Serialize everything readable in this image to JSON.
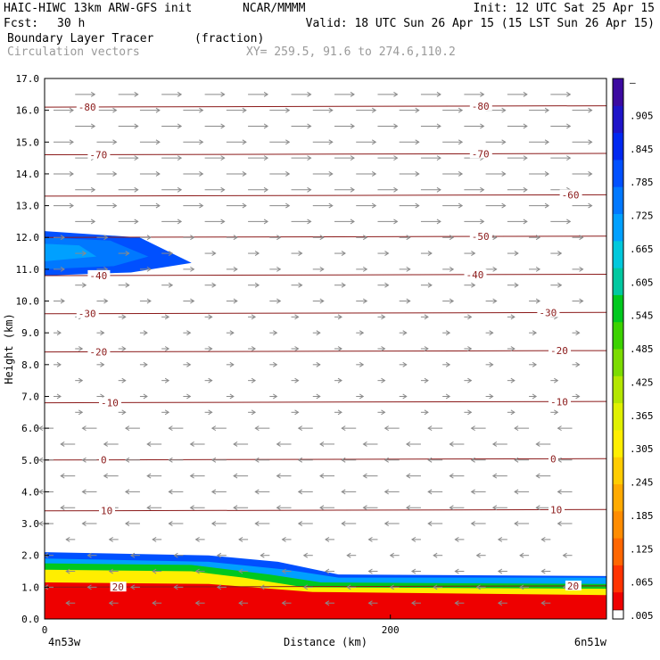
{
  "header": {
    "model": "HAIC-HIWC 13km ARW-GFS init",
    "org": "NCAR/MMMM",
    "init": "Init: 12 UTC Sat 25 Apr 15",
    "fcst_label": "Fcst:",
    "fcst_value": "30 h",
    "valid": "Valid: 18 UTC Sun 26 Apr 15 (15 LST Sun 26 Apr 15)",
    "field": "Boundary Layer Tracer",
    "field_units": "(fraction)",
    "vectors": "Circulation vectors",
    "xy": "XY= 259.5, 91.6 to 274.6,110.2"
  },
  "colors": {
    "isotherm": "#8b1a1a",
    "vector": "#8a8a8a",
    "scale": [
      "#ffffff",
      "#ee0000",
      "#ff3300",
      "#ff6600",
      "#ff8c00",
      "#ffaa00",
      "#ffcc00",
      "#ffee00",
      "#e0f000",
      "#b4e600",
      "#7cdc00",
      "#3cd200",
      "#00c81e",
      "#00c8a0",
      "#00c8dc",
      "#00a0ff",
      "#0078ff",
      "#0050ff",
      "#0028f0",
      "#1e14c8",
      "#3c0aa0"
    ]
  },
  "chart_data": {
    "type": "cross-section",
    "title": "Boundary Layer Tracer",
    "xlabel": "Distance (km)",
    "ylabel": "Height (km)",
    "ylim": [
      0,
      17
    ],
    "y_ticks": [
      "0.0",
      "1.0",
      "2.0",
      "3.0",
      "4.0",
      "5.0",
      "6.0",
      "7.0",
      "8.0",
      "9.0",
      "10.0",
      "11.0",
      "12.0",
      "13.0",
      "14.0",
      "15.0",
      "16.0",
      "17.0"
    ],
    "x_ticks": [
      {
        "x": 0,
        "label": "0"
      },
      {
        "x": 200,
        "label": "200"
      }
    ],
    "xlim": [
      0,
      325
    ],
    "x_end_labels": {
      "left": "4n53w",
      "right": "6n51w"
    },
    "colorbar": {
      "labels": [
        "–",
        ".905",
        ".845",
        ".785",
        ".725",
        ".665",
        ".605",
        ".545",
        ".485",
        ".425",
        ".365",
        ".305",
        ".245",
        ".185",
        ".125",
        ".065",
        ".005"
      ]
    },
    "isotherm_labels": [
      {
        "value": "-80",
        "height": 16.1,
        "positions": [
          0.06,
          0.76
        ]
      },
      {
        "value": "-70",
        "height": 14.6,
        "positions": [
          0.08,
          0.76
        ]
      },
      {
        "value": "-60",
        "height": 13.3,
        "positions": [
          0.92
        ]
      },
      {
        "value": "-50",
        "height": 12.0,
        "positions": [
          0.76
        ]
      },
      {
        "value": "-40",
        "height": 10.8,
        "positions": [
          0.08,
          0.75
        ]
      },
      {
        "value": "-30",
        "height": 9.6,
        "positions": [
          0.06,
          0.88
        ]
      },
      {
        "value": "-20",
        "height": 8.4,
        "positions": [
          0.08,
          0.9
        ]
      },
      {
        "value": "-10",
        "height": 6.8,
        "positions": [
          0.1,
          0.9
        ]
      },
      {
        "value": "0",
        "height": 5.0,
        "positions": [
          0.1,
          0.9
        ]
      },
      {
        "value": "10",
        "height": 3.4,
        "positions": [
          0.1,
          0.9
        ]
      },
      {
        "value": "20",
        "height": 1.0,
        "positions": [
          0.12,
          0.93
        ]
      }
    ],
    "tracer_layers": [
      {
        "level": 0.9,
        "color_index": 1,
        "top": [
          [
            0,
            1.15
          ],
          [
            95,
            1.1
          ],
          [
            155,
            0.85
          ],
          [
            325,
            0.75
          ]
        ]
      },
      {
        "level": 0.6,
        "color_index": 7,
        "top": [
          [
            0,
            1.55
          ],
          [
            85,
            1.5
          ],
          [
            115,
            1.3
          ],
          [
            150,
            1.0
          ],
          [
            325,
            0.95
          ]
        ]
      },
      {
        "level": 0.3,
        "color_index": 12,
        "top": [
          [
            0,
            1.75
          ],
          [
            85,
            1.7
          ],
          [
            130,
            1.4
          ],
          [
            160,
            1.15
          ],
          [
            325,
            1.1
          ]
        ]
      },
      {
        "level": 0.12,
        "color_index": 15,
        "top": [
          [
            0,
            1.9
          ],
          [
            95,
            1.8
          ],
          [
            140,
            1.55
          ],
          [
            170,
            1.3
          ],
          [
            325,
            1.3
          ]
        ]
      },
      {
        "level": 0.03,
        "color_index": 17,
        "top": [
          [
            0,
            2.1
          ],
          [
            95,
            2.0
          ],
          [
            135,
            1.8
          ],
          [
            170,
            1.4
          ],
          [
            325,
            1.35
          ]
        ]
      }
    ],
    "upper_plume": [
      {
        "level": 0.03,
        "color_index": 17,
        "outline": [
          [
            0,
            10.8
          ],
          [
            50,
            10.9
          ],
          [
            85,
            11.2
          ],
          [
            55,
            12.0
          ],
          [
            0,
            12.2
          ]
        ]
      },
      {
        "level": 0.1,
        "color_index": 16,
        "outline": [
          [
            0,
            11.0
          ],
          [
            40,
            11.1
          ],
          [
            60,
            11.4
          ],
          [
            38,
            11.9
          ],
          [
            0,
            12.0
          ]
        ]
      },
      {
        "level": 0.2,
        "color_index": 15,
        "outline": [
          [
            0,
            11.25
          ],
          [
            30,
            11.4
          ],
          [
            20,
            11.75
          ],
          [
            0,
            11.8
          ]
        ]
      }
    ]
  }
}
